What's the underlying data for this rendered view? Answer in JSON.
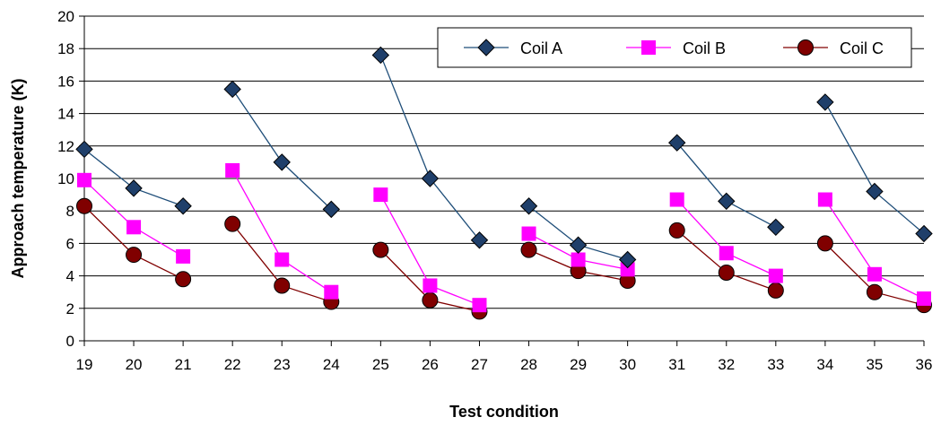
{
  "chart_data": {
    "type": "line",
    "xlabel": "Test condition",
    "ylabel": "Approach temperature (K)",
    "ylim": [
      0,
      20
    ],
    "yticks": [
      0,
      2,
      4,
      6,
      8,
      10,
      12,
      14,
      16,
      18,
      20
    ],
    "categories": [
      "19",
      "20",
      "21",
      "22",
      "23",
      "24",
      "25",
      "26",
      "27",
      "28",
      "29",
      "30",
      "31",
      "32",
      "33",
      "34",
      "35",
      "36"
    ],
    "grid": "horizontal",
    "legend_position": "top-right",
    "groups": [
      [
        0,
        2
      ],
      [
        3,
        5
      ],
      [
        6,
        8
      ],
      [
        9,
        11
      ],
      [
        12,
        14
      ],
      [
        15,
        17
      ]
    ],
    "series": [
      {
        "name": "Coil A",
        "marker": "diamond",
        "color": "#1F4E79",
        "marker_color": "#1F3F6A",
        "values": [
          11.8,
          9.4,
          8.3,
          15.5,
          11.0,
          8.1,
          17.6,
          10.0,
          6.2,
          8.3,
          5.9,
          5.0,
          12.2,
          8.6,
          7.0,
          14.7,
          9.2,
          6.6
        ]
      },
      {
        "name": "Coil B",
        "marker": "square",
        "color": "#FF00FF",
        "marker_color": "#FF00FF",
        "values": [
          9.9,
          7.0,
          5.2,
          10.5,
          5.0,
          3.0,
          9.0,
          3.4,
          2.2,
          6.6,
          5.0,
          4.4,
          8.7,
          5.4,
          4.0,
          8.7,
          4.1,
          2.6
        ]
      },
      {
        "name": "Coil C",
        "marker": "circle",
        "color": "#800000",
        "marker_color": "#800000",
        "values": [
          8.3,
          5.3,
          3.8,
          7.2,
          3.4,
          2.4,
          5.6,
          2.5,
          1.8,
          5.6,
          4.3,
          3.7,
          6.8,
          4.2,
          3.1,
          6.0,
          3.0,
          2.2
        ]
      }
    ]
  }
}
